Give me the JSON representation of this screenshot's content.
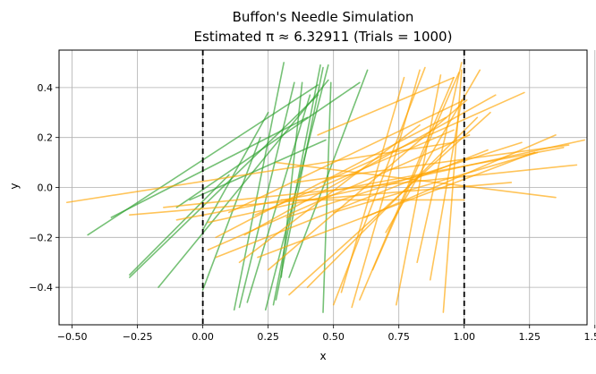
{
  "chart_data": {
    "type": "line",
    "title_line1": "Buffon's Needle Simulation",
    "title_line2": "Estimated π ≈ 6.32911 (Trials = 1000)",
    "xlabel": "x",
    "ylabel": "y",
    "xlim": [
      -0.55,
      1.47
    ],
    "ylim": [
      -0.55,
      0.55
    ],
    "xticks": [
      -0.5,
      -0.25,
      0.0,
      0.25,
      0.5,
      0.75,
      1.0,
      1.25,
      1.5
    ],
    "xtick_labels": [
      "−0.50",
      "−0.25",
      "0.00",
      "0.25",
      "0.50",
      "0.75",
      "1.00",
      "1.25",
      "1.50"
    ],
    "yticks": [
      -0.4,
      -0.2,
      0.0,
      0.2,
      0.4
    ],
    "ytick_labels": [
      "−0.4",
      "−0.2",
      "0.0",
      "0.2",
      "0.4"
    ],
    "grid": true,
    "boundary_lines_x": [
      0.0,
      1.0
    ],
    "colors": {
      "crossing": "#2ca02c",
      "non_crossing": "#ffa500",
      "boundary": "#000000",
      "grid": "#b0b0b0"
    },
    "series": [
      {
        "category": "crossing",
        "segments": [
          [
            -0.44,
            -0.19,
            0.44,
            0.41
          ],
          [
            -0.28,
            -0.36,
            0.44,
            0.37
          ],
          [
            -0.28,
            -0.35,
            0.1,
            0.05
          ],
          [
            -0.17,
            -0.4,
            0.48,
            0.43
          ],
          [
            -0.1,
            -0.08,
            0.6,
            0.42
          ],
          [
            -0.05,
            -0.05,
            0.47,
            0.19
          ],
          [
            0.0,
            -0.17,
            0.25,
            0.3
          ],
          [
            0.0,
            -0.41,
            0.22,
            0.2
          ],
          [
            0.12,
            -0.49,
            0.31,
            0.5
          ],
          [
            0.14,
            -0.48,
            0.35,
            0.42
          ],
          [
            0.17,
            -0.46,
            0.41,
            0.37
          ],
          [
            0.24,
            -0.49,
            0.48,
            0.49
          ],
          [
            0.27,
            -0.47,
            0.45,
            0.49
          ],
          [
            0.28,
            -0.45,
            0.46,
            0.48
          ],
          [
            0.33,
            -0.36,
            0.63,
            0.47
          ],
          [
            0.46,
            -0.5,
            0.49,
            0.42
          ],
          [
            0.3,
            -0.36,
            0.38,
            0.42
          ],
          [
            -0.35,
            -0.12,
            0.4,
            0.28
          ]
        ]
      },
      {
        "category": "non_crossing",
        "segments": [
          [
            -0.52,
            -0.06,
            0.96,
            0.18
          ],
          [
            -0.28,
            -0.11,
            1.18,
            0.02
          ],
          [
            -0.1,
            -0.13,
            1.38,
            0.16
          ],
          [
            -0.15,
            -0.08,
            1.43,
            0.09
          ],
          [
            0.02,
            -0.14,
            1.46,
            0.19
          ],
          [
            0.02,
            -0.25,
            1.02,
            0.21
          ],
          [
            0.05,
            -0.2,
            0.93,
            0.28
          ],
          [
            0.05,
            -0.28,
            1.09,
            0.15
          ],
          [
            0.1,
            -0.1,
            1.0,
            0.35
          ],
          [
            0.14,
            -0.3,
            0.83,
            0.25
          ],
          [
            0.16,
            -0.19,
            1.12,
            0.37
          ],
          [
            0.2,
            -0.11,
            0.96,
            0.23
          ],
          [
            0.21,
            -0.28,
            1.27,
            0.14
          ],
          [
            0.25,
            -0.33,
            1.01,
            0.35
          ],
          [
            0.28,
            0.1,
            1.35,
            -0.04
          ],
          [
            0.32,
            -0.12,
            1.22,
            0.18
          ],
          [
            0.33,
            -0.43,
            1.1,
            0.3
          ],
          [
            0.35,
            0.02,
            1.4,
            0.17
          ],
          [
            0.4,
            -0.4,
            1.05,
            0.28
          ],
          [
            0.46,
            0.02,
            1.23,
            0.38
          ],
          [
            0.5,
            -0.1,
            1.28,
            0.14
          ],
          [
            0.5,
            -0.47,
            0.85,
            0.48
          ],
          [
            0.53,
            -0.42,
            0.77,
            0.44
          ],
          [
            0.57,
            -0.48,
            0.83,
            0.47
          ],
          [
            0.6,
            -0.45,
            0.96,
            0.44
          ],
          [
            0.65,
            -0.33,
            0.98,
            0.46
          ],
          [
            0.7,
            -0.18,
            1.06,
            0.47
          ],
          [
            0.74,
            -0.47,
            0.91,
            0.45
          ],
          [
            0.82,
            -0.3,
            0.99,
            0.5
          ],
          [
            0.92,
            -0.5,
            0.99,
            0.47
          ],
          [
            0.87,
            -0.37,
            0.99,
            0.35
          ],
          [
            0.44,
            0.21,
            0.96,
            0.44
          ],
          [
            0.62,
            -0.12,
            1.35,
            0.21
          ],
          [
            0.3,
            -0.05,
            1.0,
            -0.05
          ]
        ]
      }
    ]
  }
}
